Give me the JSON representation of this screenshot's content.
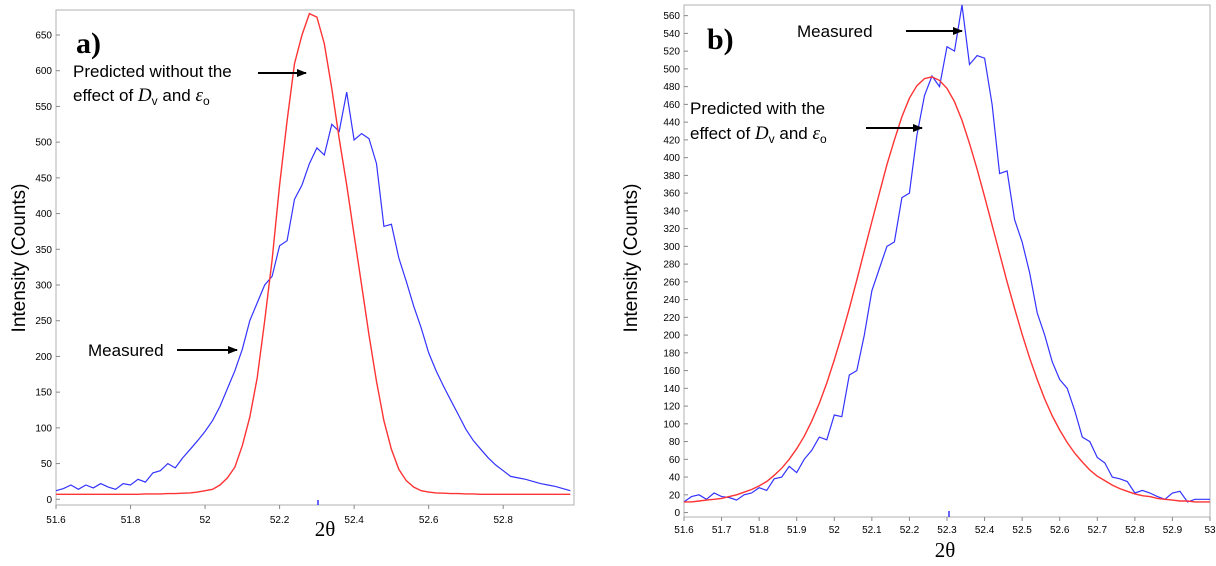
{
  "chart_data": [
    {
      "type": "line",
      "panel_label": "a)",
      "xlabel": "2θ",
      "ylabel": "Intensity (Counts)",
      "xlim": [
        51.6,
        52.99
      ],
      "ylim": [
        -8,
        685
      ],
      "xticks": [
        "51.6",
        "51.8",
        "52",
        "52.2",
        "52.4",
        "52.6",
        "52.8"
      ],
      "yticks": [
        "0",
        "50",
        "100",
        "150",
        "200",
        "250",
        "300",
        "350",
        "400",
        "450",
        "500",
        "550",
        "600",
        "650"
      ],
      "colors": {
        "measured": "#3333ff",
        "predicted": "#ff3333"
      },
      "series": [
        {
          "key": "measured",
          "x": [
            51.6,
            51.62,
            51.64,
            51.66,
            51.68,
            51.7,
            51.72,
            51.74,
            51.76,
            51.78,
            51.8,
            51.82,
            51.84,
            51.86,
            51.88,
            51.9,
            51.92,
            51.94,
            51.96,
            51.98,
            52.0,
            52.02,
            52.04,
            52.06,
            52.08,
            52.1,
            52.12,
            52.14,
            52.16,
            52.18,
            52.2,
            52.22,
            52.24,
            52.26,
            52.28,
            52.3,
            52.32,
            52.34,
            52.36,
            52.38,
            52.4,
            52.42,
            52.44,
            52.46,
            52.48,
            52.5,
            52.52,
            52.54,
            52.56,
            52.58,
            52.6,
            52.62,
            52.64,
            52.66,
            52.68,
            52.7,
            52.72,
            52.74,
            52.76,
            52.78,
            52.8,
            52.82,
            52.84,
            52.86,
            52.88,
            52.9,
            52.92,
            52.94,
            52.96,
            52.98
          ],
          "y": [
            12,
            15,
            20,
            14,
            20,
            16,
            22,
            17,
            14,
            22,
            20,
            28,
            24,
            37,
            40,
            50,
            44,
            58,
            70,
            82,
            95,
            110,
            130,
            155,
            180,
            210,
            250,
            275,
            300,
            312,
            355,
            362,
            420,
            440,
            470,
            492,
            482,
            525,
            515,
            570,
            503,
            512,
            505,
            470,
            382,
            385,
            338,
            305,
            270,
            240,
            205,
            180,
            158,
            138,
            118,
            98,
            82,
            70,
            58,
            48,
            40,
            32,
            30,
            28,
            25,
            22,
            20,
            18,
            15,
            12
          ]
        },
        {
          "key": "predicted",
          "x": [
            51.6,
            51.62,
            51.64,
            51.66,
            51.68,
            51.7,
            51.72,
            51.74,
            51.76,
            51.78,
            51.8,
            51.82,
            51.84,
            51.86,
            51.88,
            51.9,
            51.92,
            51.94,
            51.96,
            51.98,
            52.0,
            52.02,
            52.04,
            52.06,
            52.08,
            52.1,
            52.12,
            52.14,
            52.16,
            52.18,
            52.2,
            52.22,
            52.24,
            52.26,
            52.28,
            52.3,
            52.32,
            52.34,
            52.36,
            52.38,
            52.4,
            52.42,
            52.44,
            52.46,
            52.48,
            52.5,
            52.52,
            52.54,
            52.56,
            52.58,
            52.6,
            52.62,
            52.64,
            52.66,
            52.68,
            52.7,
            52.72,
            52.74,
            52.76,
            52.78,
            52.8,
            52.82,
            52.84,
            52.86,
            52.88,
            52.9,
            52.92,
            52.94,
            52.96,
            52.98
          ],
          "y": [
            7,
            7,
            7,
            7,
            7,
            7,
            7,
            7,
            7,
            7,
            7,
            7,
            7.5,
            7.5,
            7.5,
            8,
            8,
            8.5,
            9,
            10,
            12,
            14,
            20,
            30,
            45,
            75,
            115,
            170,
            250,
            335,
            440,
            530,
            610,
            650,
            680,
            675,
            638,
            575,
            505,
            440,
            370,
            300,
            230,
            165,
            110,
            70,
            42,
            26,
            17,
            12,
            10,
            9,
            8.5,
            8,
            8,
            7.5,
            7.5,
            7,
            7,
            7,
            7,
            7,
            7,
            7,
            7,
            7,
            7,
            7,
            7,
            7
          ]
        }
      ],
      "annotations": {
        "predicted": {
          "line1": "Predicted without the",
          "line2_prefix": "effect of ",
          "sym1": "D",
          "sub1": "v",
          "mid": " and ",
          "sym2": "ε",
          "sub2": "o"
        },
        "measured": {
          "text": "Measured"
        }
      }
    },
    {
      "type": "line",
      "panel_label": "b)",
      "xlabel": "2θ",
      "ylabel": "Intensity (Counts)",
      "xlim": [
        51.6,
        53.0
      ],
      "ylim": [
        -5,
        572
      ],
      "xticks": [
        "51.6",
        "51.7",
        "51.8",
        "51.9",
        "52",
        "52.1",
        "52.2",
        "52.3",
        "52.4",
        "52.5",
        "52.6",
        "52.7",
        "52.8",
        "52.9",
        "53"
      ],
      "yticks": [
        "0",
        "20",
        "40",
        "60",
        "80",
        "100",
        "120",
        "140",
        "160",
        "180",
        "200",
        "220",
        "240",
        "260",
        "280",
        "300",
        "320",
        "340",
        "360",
        "380",
        "400",
        "420",
        "440",
        "460",
        "480",
        "500",
        "520",
        "540",
        "560"
      ],
      "colors": {
        "measured": "#3333ff",
        "predicted": "#ff3333"
      },
      "series": [
        {
          "key": "measured",
          "x": [
            51.6,
            51.62,
            51.64,
            51.66,
            51.68,
            51.7,
            51.72,
            51.74,
            51.76,
            51.78,
            51.8,
            51.82,
            51.84,
            51.86,
            51.88,
            51.9,
            51.92,
            51.94,
            51.96,
            51.98,
            52.0,
            52.02,
            52.04,
            52.06,
            52.08,
            52.1,
            52.12,
            52.14,
            52.16,
            52.18,
            52.2,
            52.22,
            52.24,
            52.26,
            52.28,
            52.3,
            52.32,
            52.34,
            52.36,
            52.38,
            52.4,
            52.42,
            52.44,
            52.46,
            52.48,
            52.5,
            52.52,
            52.54,
            52.56,
            52.58,
            52.6,
            52.62,
            52.64,
            52.66,
            52.68,
            52.7,
            52.72,
            52.74,
            52.76,
            52.78,
            52.8,
            52.82,
            52.84,
            52.86,
            52.88,
            52.9,
            52.92,
            52.94,
            52.96,
            52.98,
            53.0
          ],
          "y": [
            12,
            18,
            20,
            15,
            22,
            18,
            17,
            14,
            20,
            22,
            28,
            25,
            38,
            40,
            52,
            45,
            60,
            70,
            85,
            82,
            110,
            108,
            155,
            160,
            200,
            250,
            275,
            300,
            305,
            355,
            360,
            425,
            470,
            492,
            480,
            525,
            520,
            572,
            505,
            515,
            512,
            460,
            382,
            385,
            330,
            305,
            270,
            225,
            200,
            170,
            150,
            140,
            115,
            85,
            80,
            62,
            56,
            40,
            38,
            35,
            22,
            25,
            22,
            18,
            15,
            22,
            24,
            12,
            15,
            15,
            15
          ]
        },
        {
          "key": "predicted",
          "x": [
            51.6,
            51.62,
            51.64,
            51.66,
            51.68,
            51.7,
            51.72,
            51.74,
            51.76,
            51.78,
            51.8,
            51.82,
            51.84,
            51.86,
            51.88,
            51.9,
            51.92,
            51.94,
            51.96,
            51.98,
            52.0,
            52.02,
            52.04,
            52.06,
            52.08,
            52.1,
            52.12,
            52.14,
            52.16,
            52.18,
            52.2,
            52.22,
            52.24,
            52.26,
            52.28,
            52.3,
            52.32,
            52.34,
            52.36,
            52.38,
            52.4,
            52.42,
            52.44,
            52.46,
            52.48,
            52.5,
            52.52,
            52.54,
            52.56,
            52.58,
            52.6,
            52.62,
            52.64,
            52.66,
            52.68,
            52.7,
            52.72,
            52.74,
            52.76,
            52.78,
            52.8,
            52.82,
            52.84,
            52.86,
            52.88,
            52.9,
            52.92,
            52.94,
            52.96,
            52.98,
            53.0
          ],
          "y": [
            12,
            12,
            13,
            14,
            15,
            16,
            18,
            20,
            23,
            26,
            30,
            35,
            42,
            50,
            60,
            72,
            86,
            103,
            123,
            146,
            172,
            200,
            230,
            262,
            295,
            328,
            360,
            392,
            420,
            446,
            467,
            481,
            489,
            491,
            487,
            478,
            463,
            442,
            416,
            387,
            356,
            324,
            292,
            260,
            230,
            201,
            174,
            150,
            128,
            109,
            93,
            79,
            67,
            57,
            48,
            41,
            36,
            31,
            27,
            24,
            21,
            19,
            18,
            16,
            15,
            14,
            13,
            13,
            12,
            12,
            12
          ]
        }
      ],
      "annotations": {
        "measured": {
          "text": "Measured"
        },
        "predicted": {
          "line1": "Predicted with the",
          "line2_prefix": "effect of ",
          "sym1": "D",
          "sub1": "v",
          "mid": " and ",
          "sym2": "ε",
          "sub2": "o"
        }
      }
    }
  ]
}
